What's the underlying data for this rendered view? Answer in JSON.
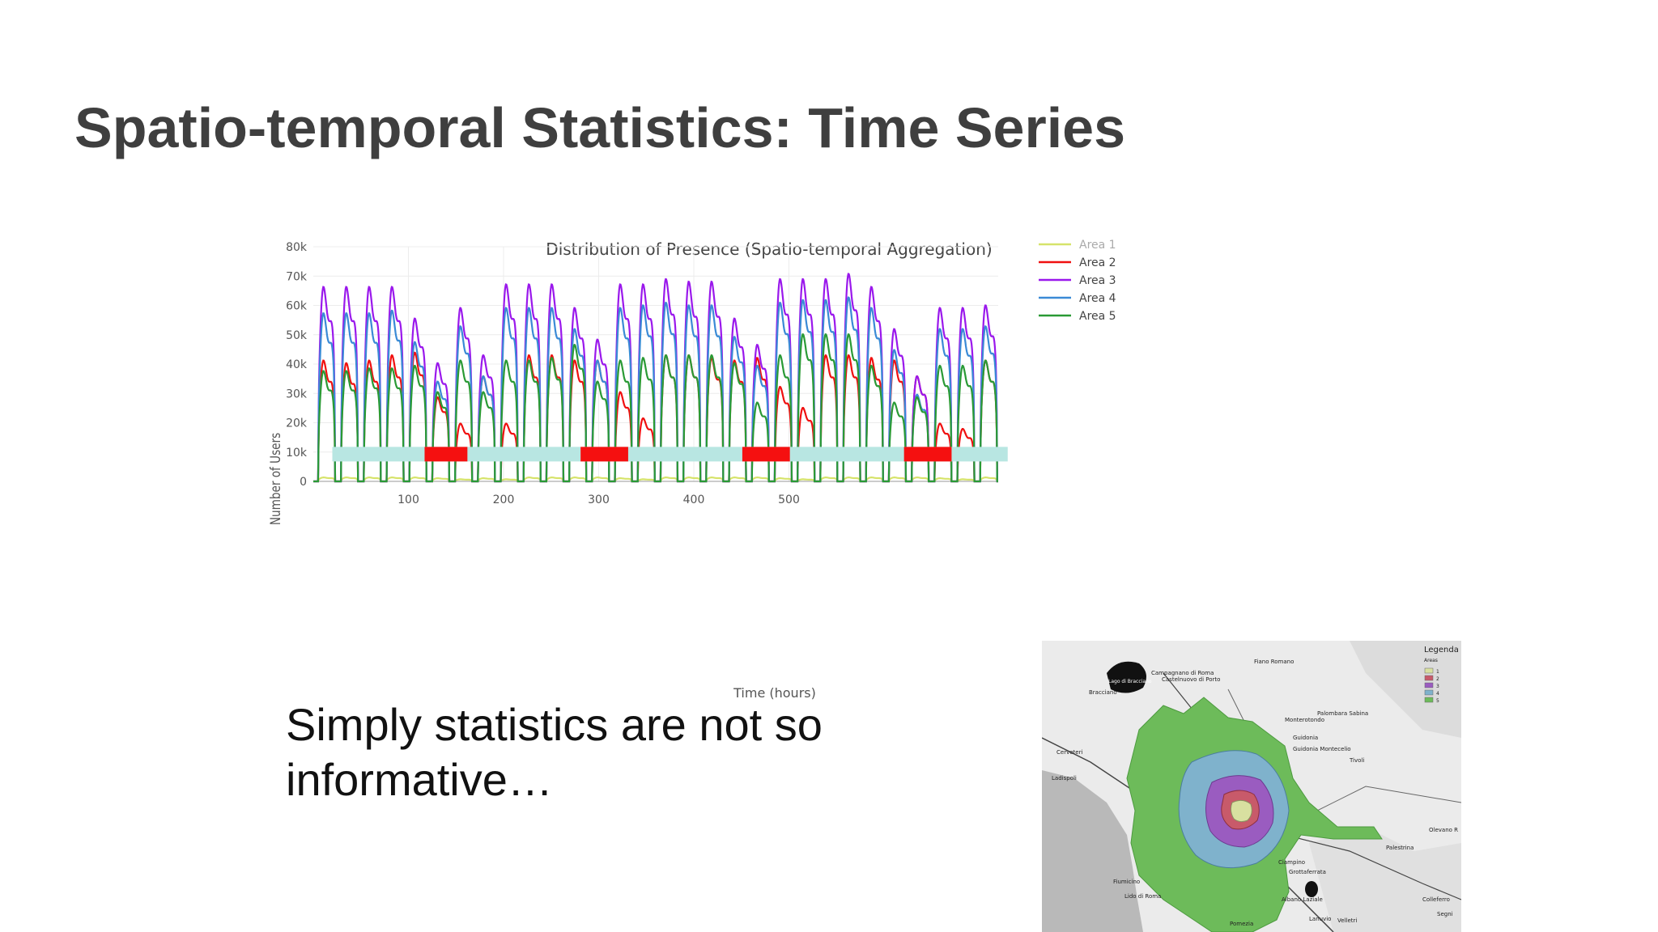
{
  "slide": {
    "title": "Spatio-temporal Statistics: Time Series",
    "body_text": "Simply statistics are not so informative…"
  },
  "chart_data": {
    "type": "line",
    "title": "Distribution of Presence (Spatio-temporal Aggregation)",
    "xlabel": "Time (hours)",
    "ylabel": "Number of Users",
    "xlim": [
      0,
      720
    ],
    "ylim": [
      0,
      80000
    ],
    "x_ticks": [
      "100",
      "200",
      "300",
      "400",
      "500"
    ],
    "y_ticks": [
      "0",
      "10k",
      "20k",
      "30k",
      "40k",
      "50k",
      "60k",
      "70k",
      "80k"
    ],
    "x_tick_values": [
      100,
      200,
      300,
      400,
      500
    ],
    "y_tick_values": [
      0,
      10000,
      20000,
      30000,
      40000,
      50000,
      60000,
      70000,
      80000
    ],
    "grid": true,
    "legend_position": "top-right",
    "series": [
      {
        "name": "Area 1",
        "color": "#d6e36a",
        "daily_peaks": [
          1500,
          1500,
          1500,
          1500,
          1500,
          1200,
          800,
          1200,
          800,
          1500,
          1500,
          1500,
          1500,
          1200,
          800,
          1500,
          1500,
          1500,
          1500,
          1500,
          1200,
          800,
          1500,
          1500,
          1500,
          1500,
          1500,
          1200,
          800,
          1500
        ]
      },
      {
        "name": "Area 2",
        "color": "#f01010",
        "daily_peaks": [
          46000,
          45000,
          46000,
          48000,
          49000,
          32000,
          22000,
          40000,
          22000,
          48000,
          48000,
          46000,
          46000,
          34000,
          24000,
          48000,
          48000,
          47000,
          46000,
          47000,
          36000,
          28000,
          48000,
          48000,
          47000,
          46000,
          40000,
          22000,
          20000,
          46000
        ]
      },
      {
        "name": "Area 3",
        "color": "#9a18ec",
        "daily_peaks": [
          74000,
          74000,
          74000,
          74000,
          62000,
          45000,
          66000,
          48000,
          75000,
          75000,
          75000,
          66000,
          54000,
          75000,
          75000,
          77000,
          76000,
          76000,
          62000,
          52000,
          77000,
          77000,
          77000,
          79000,
          74000,
          58000,
          40000,
          66000,
          66000,
          67000
        ]
      },
      {
        "name": "Area 4",
        "color": "#3a8ad6",
        "daily_peaks": [
          64000,
          64000,
          64000,
          65000,
          53000,
          38000,
          59000,
          40000,
          66000,
          66000,
          66000,
          58000,
          46000,
          66000,
          67000,
          68000,
          67000,
          67000,
          55000,
          44000,
          68000,
          69000,
          69000,
          70000,
          66000,
          50000,
          33000,
          58000,
          58000,
          59000
        ]
      },
      {
        "name": "Area 5",
        "color": "#2a9a35",
        "daily_peaks": [
          42000,
          42000,
          43000,
          43000,
          44000,
          34000,
          46000,
          34000,
          46000,
          46000,
          47000,
          52000,
          38000,
          46000,
          47000,
          48000,
          48000,
          48000,
          45000,
          30000,
          48000,
          56000,
          56000,
          56000,
          44000,
          30000,
          32000,
          44000,
          44000,
          46000
        ]
      }
    ],
    "calendar_bar": {
      "level": 9000,
      "weekday_color": "#b8e6e2",
      "weekend_color": "#f51010",
      "range": [
        20,
        730
      ],
      "weekends": [
        [
          117,
          162
        ],
        [
          281,
          331
        ],
        [
          451,
          501
        ],
        [
          621,
          671
        ]
      ]
    }
  },
  "map": {
    "legend_title": "Legenda",
    "legend_subtitle": "Areas",
    "legend_items": [
      "1",
      "2",
      "3",
      "4",
      "5"
    ],
    "legend_colors": [
      "#d8e0a0",
      "#c85a6a",
      "#9a5cc0",
      "#7fb2cc",
      "#6dbb5a"
    ],
    "labels": [
      "Campagnano di Roma",
      "Castelnuovo di Porto",
      "Fiano Romano",
      "Lago di Bracciano",
      "Bracciano",
      "Palombara Sabina",
      "Monterotondo",
      "Cerveteri",
      "Guidonia",
      "Guidonia Montecelio",
      "Ladispoli",
      "Tivoli",
      "Olevano R",
      "Palestrina",
      "Ciampino",
      "Grottaferrata",
      "Fiumicino",
      "Lido di Roma",
      "Albano Laziale",
      "Colleferro",
      "Lanuvio",
      "Velletri",
      "Pomezia",
      "Segni"
    ]
  }
}
